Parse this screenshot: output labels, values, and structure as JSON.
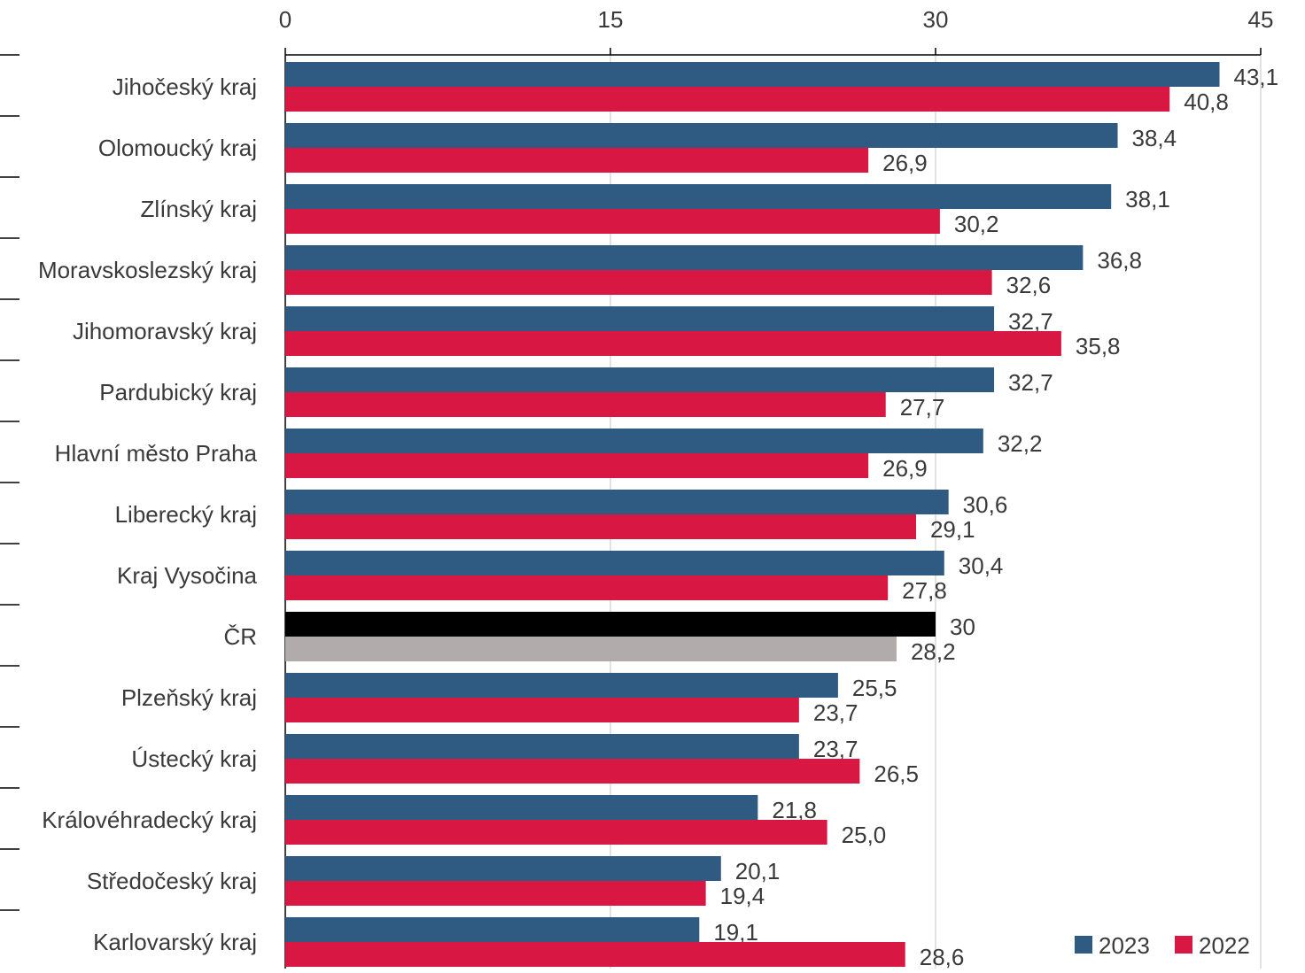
{
  "chart_data": {
    "type": "bar",
    "orientation": "horizontal",
    "xlim": [
      0,
      45
    ],
    "xticks": [
      "0",
      "15",
      "30",
      "45"
    ],
    "tick_values": [
      0,
      15,
      30,
      45
    ],
    "grid": "vertical lines at ticks",
    "legend_placement": "bottom-right",
    "categories": [
      "Jihočeský kraj",
      "Olomoucký kraj",
      "Zlínský kraj",
      "Moravskoslezský kraj",
      "Jihomoravský kraj",
      "Pardubický kraj",
      "Hlavní město Praha",
      "Liberecký kraj",
      "Kraj Vysočina",
      "ČR",
      "Plzeňský kraj",
      "Ústecký kraj",
      "Královéhradecký kraj",
      "Středočeský kraj",
      "Karlovarský kraj"
    ],
    "series": [
      {
        "name": "2023",
        "color": "#2f5a82",
        "highlight_color": "#000000",
        "values": [
          43.1,
          38.4,
          38.1,
          36.8,
          32.7,
          32.7,
          32.2,
          30.6,
          30.4,
          30,
          25.5,
          23.7,
          21.8,
          20.1,
          19.1
        ],
        "labels": [
          "43,1",
          "38,4",
          "38,1",
          "36,8",
          "32,7",
          "32,7",
          "32,2",
          "30,6",
          "30,4",
          "30",
          "25,5",
          "23,7",
          "21,8",
          "20,1",
          "19,1"
        ]
      },
      {
        "name": "2022",
        "color": "#d81743",
        "highlight_color": "#b1acab",
        "values": [
          40.8,
          26.9,
          30.2,
          32.6,
          35.8,
          27.7,
          26.9,
          29.1,
          27.8,
          28.2,
          23.7,
          26.5,
          25.0,
          19.4,
          28.6
        ],
        "labels": [
          "40,8",
          "26,9",
          "30,2",
          "32,6",
          "35,8",
          "27,7",
          "26,9",
          "29,1",
          "27,8",
          "28,2",
          "23,7",
          "26,5",
          "25,0",
          "19,4",
          "28,6"
        ]
      }
    ],
    "highlight_category": "ČR"
  }
}
